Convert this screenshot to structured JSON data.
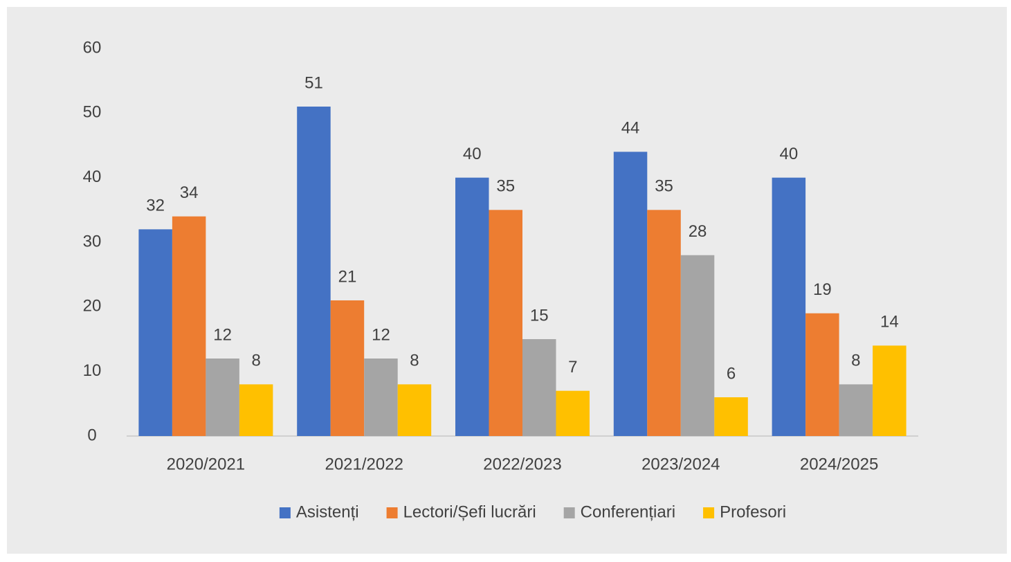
{
  "chart_data": {
    "type": "bar",
    "categories": [
      "2020/2021",
      "2021/2022",
      "2022/2023",
      "2023/2024",
      "2024/2025"
    ],
    "series": [
      {
        "name": "Asistenți",
        "color": "#4472c4",
        "values": [
          32,
          51,
          40,
          44,
          40
        ]
      },
      {
        "name": "Lectori/Șefi lucrări",
        "color": "#ed7d31",
        "values": [
          34,
          21,
          35,
          35,
          19
        ]
      },
      {
        "name": "Conferențiari",
        "color": "#a5a5a5",
        "values": [
          12,
          12,
          15,
          28,
          8
        ]
      },
      {
        "name": "Profesori",
        "color": "#ffc000",
        "values": [
          8,
          8,
          7,
          6,
          14
        ]
      }
    ],
    "ylim": [
      0,
      60
    ],
    "yticks": [
      0,
      10,
      20,
      30,
      40,
      50,
      60
    ],
    "grid": false,
    "legend": "bottom"
  }
}
